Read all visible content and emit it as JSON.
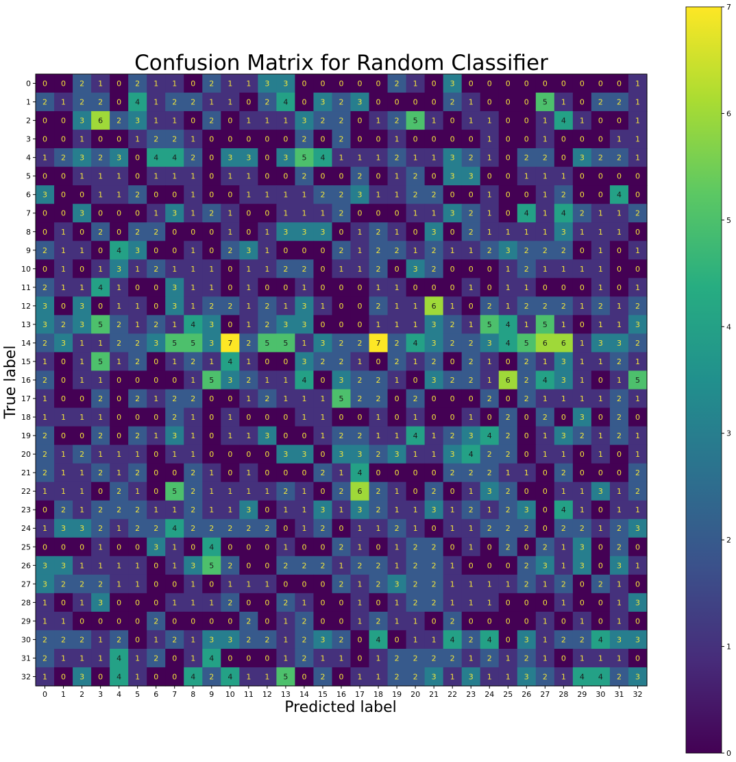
{
  "chart_data": {
    "type": "heatmap",
    "title": "Confusion Matrix for Random Classifier",
    "xlabel": "Predicted label",
    "ylabel": "True label",
    "x_ticks": [
      "0",
      "1",
      "2",
      "3",
      "4",
      "5",
      "6",
      "7",
      "8",
      "9",
      "10",
      "11",
      "12",
      "13",
      "14",
      "15",
      "16",
      "17",
      "18",
      "19",
      "20",
      "21",
      "22",
      "23",
      "24",
      "25",
      "26",
      "27",
      "28",
      "29",
      "30",
      "31",
      "32"
    ],
    "y_ticks": [
      "0",
      "1",
      "2",
      "3",
      "4",
      "5",
      "6",
      "7",
      "8",
      "9",
      "10",
      "11",
      "12",
      "13",
      "14",
      "15",
      "16",
      "17",
      "18",
      "19",
      "20",
      "21",
      "22",
      "23",
      "24",
      "25",
      "26",
      "27",
      "28",
      "29",
      "30",
      "31",
      "32"
    ],
    "colormap": "viridis",
    "colorbar": {
      "min": 0,
      "max": 7,
      "ticks": [
        "0",
        "1",
        "2",
        "3",
        "4",
        "5",
        "6",
        "7"
      ]
    },
    "matrix": [
      [
        0,
        0,
        2,
        1,
        0,
        2,
        1,
        1,
        0,
        2,
        1,
        1,
        3,
        3,
        0,
        0,
        0,
        0,
        0,
        2,
        1,
        0,
        3,
        0,
        0,
        0,
        0,
        0,
        0,
        0,
        0,
        0,
        1
      ],
      [
        2,
        1,
        2,
        2,
        0,
        4,
        1,
        2,
        2,
        1,
        1,
        0,
        2,
        4,
        0,
        3,
        2,
        3,
        0,
        0,
        0,
        0,
        2,
        1,
        0,
        0,
        0,
        5,
        1,
        0,
        2,
        2,
        1
      ],
      [
        0,
        0,
        3,
        6,
        2,
        3,
        1,
        1,
        0,
        2,
        0,
        1,
        1,
        1,
        3,
        2,
        2,
        0,
        1,
        2,
        5,
        1,
        0,
        1,
        1,
        0,
        0,
        1,
        4,
        1,
        0,
        0,
        1
      ],
      [
        0,
        0,
        1,
        0,
        0,
        1,
        2,
        2,
        1,
        0,
        0,
        0,
        0,
        0,
        2,
        0,
        2,
        0,
        0,
        1,
        0,
        0,
        0,
        0,
        1,
        0,
        0,
        1,
        0,
        0,
        0,
        1,
        1
      ],
      [
        1,
        2,
        3,
        2,
        3,
        0,
        4,
        4,
        2,
        0,
        3,
        3,
        0,
        3,
        5,
        4,
        1,
        1,
        1,
        2,
        1,
        1,
        3,
        2,
        1,
        0,
        2,
        2,
        0,
        3,
        2,
        2,
        1
      ],
      [
        0,
        0,
        1,
        1,
        1,
        0,
        1,
        1,
        1,
        0,
        1,
        1,
        0,
        0,
        2,
        0,
        0,
        2,
        0,
        1,
        2,
        0,
        3,
        3,
        0,
        0,
        1,
        1,
        1,
        0,
        0,
        0,
        0
      ],
      [
        3,
        0,
        0,
        1,
        1,
        2,
        0,
        0,
        1,
        0,
        0,
        1,
        1,
        1,
        1,
        2,
        2,
        3,
        1,
        1,
        2,
        2,
        0,
        0,
        1,
        0,
        0,
        1,
        2,
        0,
        0,
        4,
        0
      ],
      [
        0,
        0,
        3,
        0,
        0,
        0,
        1,
        3,
        1,
        2,
        1,
        0,
        0,
        1,
        1,
        1,
        2,
        0,
        0,
        0,
        1,
        1,
        3,
        2,
        1,
        0,
        4,
        1,
        4,
        2,
        1,
        1,
        2
      ],
      [
        0,
        1,
        0,
        2,
        0,
        2,
        2,
        0,
        0,
        0,
        1,
        0,
        1,
        3,
        3,
        3,
        0,
        1,
        2,
        1,
        0,
        3,
        0,
        2,
        1,
        1,
        1,
        1,
        3,
        1,
        1,
        1,
        0
      ],
      [
        2,
        1,
        1,
        0,
        4,
        3,
        0,
        0,
        1,
        0,
        2,
        3,
        1,
        0,
        0,
        0,
        2,
        1,
        2,
        2,
        1,
        2,
        1,
        1,
        2,
        3,
        2,
        2,
        2,
        0,
        1,
        0,
        1
      ],
      [
        0,
        1,
        0,
        1,
        3,
        1,
        2,
        1,
        1,
        1,
        0,
        1,
        1,
        2,
        2,
        0,
        1,
        1,
        2,
        0,
        3,
        2,
        0,
        0,
        0,
        1,
        2,
        1,
        1,
        1,
        1,
        0,
        0
      ],
      [
        2,
        1,
        1,
        4,
        1,
        0,
        0,
        3,
        1,
        1,
        0,
        1,
        0,
        0,
        1,
        0,
        0,
        0,
        1,
        1,
        0,
        0,
        0,
        1,
        0,
        1,
        1,
        0,
        0,
        0,
        1,
        0,
        1
      ],
      [
        3,
        0,
        3,
        0,
        1,
        1,
        0,
        3,
        1,
        2,
        2,
        1,
        2,
        1,
        3,
        1,
        0,
        0,
        2,
        1,
        1,
        6,
        1,
        0,
        2,
        1,
        2,
        2,
        2,
        1,
        2,
        1,
        2
      ],
      [
        3,
        2,
        3,
        5,
        2,
        1,
        2,
        1,
        4,
        3,
        0,
        1,
        2,
        3,
        3,
        0,
        0,
        0,
        1,
        1,
        1,
        3,
        2,
        1,
        5,
        4,
        1,
        5,
        1,
        0,
        1,
        1,
        3
      ],
      [
        2,
        3,
        1,
        1,
        2,
        2,
        3,
        5,
        5,
        3,
        7,
        2,
        5,
        5,
        1,
        3,
        2,
        2,
        7,
        2,
        4,
        3,
        2,
        2,
        3,
        4,
        5,
        6,
        6,
        1,
        3,
        3,
        2
      ],
      [
        1,
        0,
        1,
        5,
        1,
        2,
        0,
        1,
        2,
        1,
        4,
        1,
        0,
        0,
        3,
        2,
        2,
        1,
        0,
        2,
        1,
        2,
        0,
        2,
        1,
        0,
        2,
        1,
        3,
        1,
        1,
        2,
        1
      ],
      [
        2,
        0,
        1,
        1,
        0,
        0,
        0,
        0,
        1,
        5,
        3,
        2,
        1,
        1,
        4,
        0,
        3,
        2,
        2,
        1,
        0,
        3,
        2,
        2,
        1,
        6,
        2,
        4,
        3,
        1,
        0,
        1,
        5
      ],
      [
        1,
        0,
        0,
        2,
        0,
        2,
        1,
        2,
        2,
        0,
        0,
        1,
        2,
        1,
        1,
        1,
        5,
        2,
        2,
        0,
        2,
        0,
        0,
        0,
        2,
        0,
        2,
        1,
        1,
        1,
        1,
        2,
        1
      ],
      [
        1,
        1,
        1,
        1,
        0,
        0,
        0,
        2,
        1,
        0,
        1,
        0,
        0,
        0,
        1,
        1,
        0,
        0,
        1,
        0,
        1,
        0,
        0,
        1,
        0,
        2,
        0,
        2,
        0,
        3,
        0,
        2,
        0
      ],
      [
        2,
        0,
        0,
        2,
        0,
        2,
        1,
        3,
        1,
        0,
        1,
        1,
        3,
        0,
        0,
        1,
        2,
        2,
        1,
        1,
        4,
        1,
        2,
        3,
        4,
        2,
        0,
        1,
        3,
        2,
        1,
        2,
        1
      ],
      [
        2,
        1,
        2,
        1,
        1,
        1,
        0,
        1,
        1,
        0,
        0,
        0,
        0,
        3,
        3,
        0,
        3,
        3,
        2,
        3,
        1,
        1,
        3,
        4,
        2,
        2,
        0,
        1,
        1,
        0,
        1,
        0,
        1
      ],
      [
        2,
        1,
        1,
        2,
        1,
        2,
        0,
        0,
        2,
        1,
        0,
        1,
        0,
        0,
        0,
        2,
        1,
        4,
        0,
        0,
        0,
        0,
        2,
        2,
        2,
        1,
        1,
        0,
        2,
        0,
        0,
        0,
        2
      ],
      [
        1,
        1,
        1,
        0,
        2,
        1,
        0,
        5,
        2,
        1,
        1,
        1,
        1,
        2,
        1,
        0,
        2,
        6,
        2,
        1,
        0,
        2,
        0,
        1,
        3,
        2,
        0,
        0,
        1,
        1,
        3,
        1,
        2
      ],
      [
        0,
        2,
        1,
        2,
        2,
        2,
        1,
        1,
        2,
        1,
        1,
        3,
        0,
        1,
        1,
        3,
        1,
        3,
        2,
        1,
        1,
        3,
        1,
        2,
        1,
        2,
        3,
        0,
        4,
        1,
        0,
        1,
        1
      ],
      [
        1,
        3,
        3,
        2,
        1,
        2,
        2,
        4,
        2,
        2,
        2,
        2,
        2,
        0,
        1,
        2,
        0,
        1,
        1,
        2,
        1,
        0,
        1,
        1,
        2,
        2,
        2,
        0,
        2,
        2,
        1,
        2,
        3
      ],
      [
        0,
        0,
        0,
        1,
        0,
        0,
        3,
        1,
        0,
        4,
        0,
        0,
        0,
        1,
        0,
        0,
        2,
        1,
        0,
        1,
        2,
        2,
        0,
        1,
        0,
        2,
        0,
        2,
        1,
        3,
        0,
        2,
        0
      ],
      [
        3,
        3,
        1,
        1,
        1,
        1,
        0,
        1,
        3,
        5,
        2,
        0,
        0,
        2,
        2,
        2,
        1,
        2,
        2,
        1,
        2,
        2,
        1,
        0,
        0,
        0,
        2,
        3,
        1,
        3,
        0,
        3,
        1
      ],
      [
        3,
        2,
        2,
        2,
        1,
        1,
        0,
        0,
        1,
        0,
        1,
        1,
        1,
        0,
        0,
        0,
        2,
        1,
        2,
        3,
        2,
        2,
        1,
        1,
        1,
        1,
        2,
        1,
        2,
        0,
        2,
        1,
        0
      ],
      [
        1,
        0,
        1,
        3,
        0,
        0,
        0,
        1,
        1,
        1,
        2,
        0,
        0,
        2,
        1,
        0,
        0,
        1,
        0,
        1,
        2,
        2,
        1,
        1,
        1,
        0,
        0,
        0,
        1,
        0,
        0,
        1,
        3
      ],
      [
        1,
        1,
        0,
        0,
        0,
        0,
        2,
        0,
        0,
        0,
        0,
        2,
        0,
        1,
        2,
        0,
        0,
        1,
        2,
        1,
        1,
        0,
        2,
        0,
        0,
        0,
        0,
        1,
        0,
        1,
        0,
        1,
        0
      ],
      [
        2,
        2,
        2,
        1,
        2,
        0,
        1,
        2,
        1,
        3,
        3,
        2,
        2,
        1,
        2,
        3,
        2,
        0,
        4,
        0,
        1,
        1,
        4,
        2,
        4,
        0,
        3,
        1,
        2,
        2,
        4,
        3,
        3
      ],
      [
        2,
        1,
        1,
        1,
        4,
        1,
        2,
        0,
        1,
        4,
        0,
        0,
        0,
        1,
        2,
        1,
        1,
        0,
        1,
        2,
        2,
        2,
        2,
        1,
        2,
        1,
        2,
        1,
        0,
        1,
        1,
        1,
        0
      ],
      [
        1,
        0,
        3,
        0,
        4,
        1,
        0,
        0,
        4,
        2,
        4,
        1,
        1,
        5,
        0,
        2,
        0,
        1,
        1,
        2,
        2,
        3,
        1,
        3,
        1,
        1,
        3,
        2,
        1,
        4,
        4,
        2,
        3
      ]
    ]
  }
}
